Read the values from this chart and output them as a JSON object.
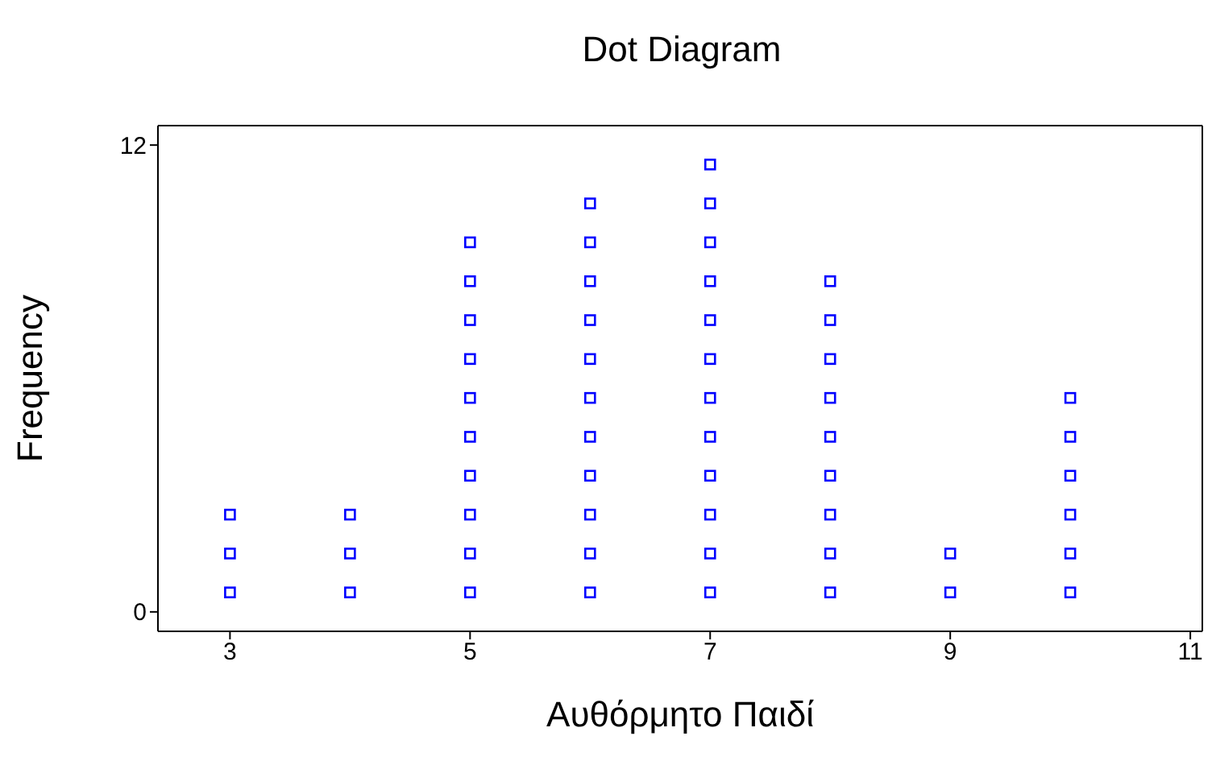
{
  "chart_data": {
    "type": "scatter",
    "title": "Dot Diagram",
    "xlabel": "Αυθόρμητο Παιδί",
    "ylabel": "Frequency",
    "xlim": [
      2.4,
      11.1
    ],
    "xticks": [
      3,
      5,
      7,
      9,
      11
    ],
    "ylim": [
      -0.5,
      12.5
    ],
    "yticks": [
      0,
      12
    ],
    "marker": "square",
    "series": [
      {
        "color": "#0000ff",
        "x": [
          3,
          3,
          3,
          4,
          4,
          4,
          5,
          5,
          5,
          5,
          5,
          5,
          5,
          5,
          5,
          5,
          6,
          6,
          6,
          6,
          6,
          6,
          6,
          6,
          6,
          6,
          6,
          7,
          7,
          7,
          7,
          7,
          7,
          7,
          7,
          7,
          7,
          7,
          7,
          8,
          8,
          8,
          8,
          8,
          8,
          8,
          8,
          8,
          9,
          9,
          10,
          10,
          10,
          10,
          10,
          10
        ],
        "values": [
          0.5,
          1.5,
          2.5,
          0.5,
          1.5,
          2.5,
          0.5,
          1.5,
          2.5,
          3.5,
          4.5,
          5.5,
          6.5,
          7.5,
          8.5,
          9.5,
          0.5,
          1.5,
          2.5,
          3.5,
          4.5,
          5.5,
          6.5,
          7.5,
          8.5,
          9.5,
          10.5,
          0.5,
          1.5,
          2.5,
          3.5,
          4.5,
          5.5,
          6.5,
          7.5,
          8.5,
          9.5,
          10.5,
          11.5,
          0.5,
          1.5,
          2.5,
          3.5,
          4.5,
          5.5,
          6.5,
          7.5,
          8.5,
          0.5,
          1.5,
          0.5,
          1.5,
          2.5,
          3.5,
          4.5,
          5.5
        ]
      }
    ]
  }
}
